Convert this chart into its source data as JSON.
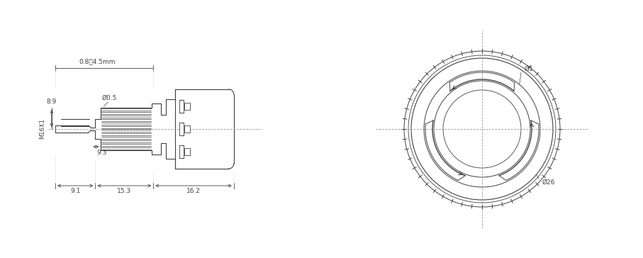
{
  "bg_color": "#ffffff",
  "line_color": "#404040",
  "dim_color": "#404040",
  "labels": {
    "panel_thickness": "0.8～4.5mm",
    "d05": "Ø0.5",
    "m16x1": "M16X1",
    "d89": "8.9",
    "d93": "9.3",
    "d91": "9.1",
    "d153": "15.3",
    "d162": "16.2",
    "d1": "Ø1",
    "d26": "Ø26"
  }
}
